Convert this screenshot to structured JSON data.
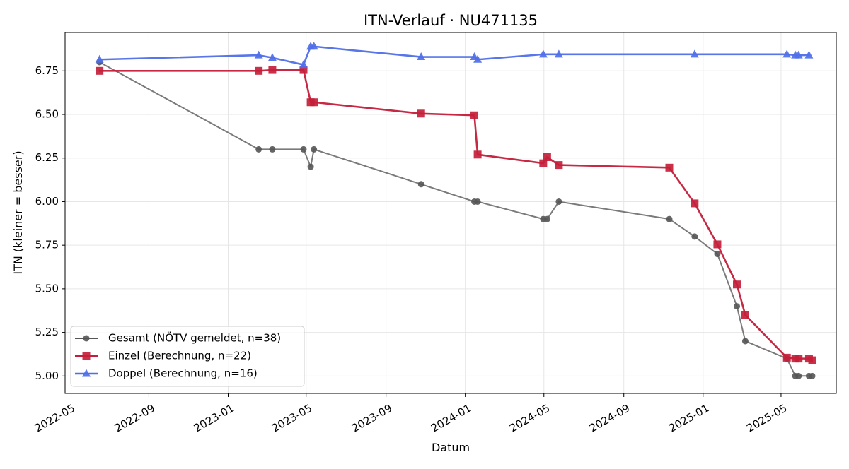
{
  "chart_data": {
    "type": "line",
    "title": "ITN-Verlauf · NU471135",
    "xlabel": "Datum",
    "ylabel": "ITN  (kleiner = besser)",
    "xlim": [
      "2022-04-25",
      "2025-07-25"
    ],
    "ylim": [
      4.9,
      6.97
    ],
    "x_tick_labels": [
      "2022-05",
      "2022-09",
      "2023-01",
      "2023-05",
      "2023-09",
      "2024-01",
      "2024-05",
      "2024-09",
      "2025-01",
      "2025-05"
    ],
    "x_ticks": [
      "2022-05-01",
      "2022-09-01",
      "2023-01-01",
      "2023-05-01",
      "2023-09-01",
      "2024-01-01",
      "2024-05-01",
      "2024-09-01",
      "2025-01-01",
      "2025-05-01"
    ],
    "y_ticks": [
      5.0,
      5.25,
      5.5,
      5.75,
      6.0,
      6.25,
      6.5,
      6.75
    ],
    "y_tick_labels": [
      "5.00",
      "5.25",
      "5.50",
      "5.75",
      "6.00",
      "6.25",
      "6.50",
      "6.75"
    ],
    "grid": true,
    "legend_position": "lower-left",
    "series": [
      {
        "name": "Gesamt (NÖTV gemeldet, n=38)",
        "color": "#555555",
        "marker": "circle",
        "points": [
          [
            "2022-06-17",
            6.8
          ],
          [
            "2023-02-17",
            6.3
          ],
          [
            "2023-03-10",
            6.3
          ],
          [
            "2023-04-27",
            6.3
          ],
          [
            "2023-05-08",
            6.2
          ],
          [
            "2023-05-13",
            6.3
          ],
          [
            "2023-10-25",
            6.1
          ],
          [
            "2024-01-15",
            6.0
          ],
          [
            "2024-01-20",
            6.0
          ],
          [
            "2024-04-30",
            5.9
          ],
          [
            "2024-05-06",
            5.9
          ],
          [
            "2024-05-24",
            6.0
          ],
          [
            "2024-11-10",
            5.9
          ],
          [
            "2024-12-19",
            5.8
          ],
          [
            "2025-01-23",
            5.7
          ],
          [
            "2025-02-22",
            5.4
          ],
          [
            "2025-03-07",
            5.2
          ],
          [
            "2025-05-10",
            5.1
          ],
          [
            "2025-05-23",
            5.0
          ],
          [
            "2025-05-28",
            5.0
          ],
          [
            "2025-06-13",
            5.0
          ],
          [
            "2025-06-18",
            5.0
          ]
        ]
      },
      {
        "name": "Einzel (Berechnung, n=22)",
        "color": "#c41e3a",
        "marker": "square",
        "points": [
          [
            "2022-06-17",
            6.75
          ],
          [
            "2023-02-17",
            6.75
          ],
          [
            "2023-03-10",
            6.755
          ],
          [
            "2023-04-27",
            6.755
          ],
          [
            "2023-05-08",
            6.57
          ],
          [
            "2023-05-13",
            6.57
          ],
          [
            "2023-10-25",
            6.505
          ],
          [
            "2024-01-15",
            6.495
          ],
          [
            "2024-01-20",
            6.27
          ],
          [
            "2024-04-30",
            6.22
          ],
          [
            "2024-05-06",
            6.255
          ],
          [
            "2024-05-24",
            6.21
          ],
          [
            "2024-11-10",
            6.195
          ],
          [
            "2024-12-19",
            5.99
          ],
          [
            "2025-01-23",
            5.755
          ],
          [
            "2025-02-22",
            5.525
          ],
          [
            "2025-03-07",
            5.35
          ],
          [
            "2025-05-10",
            5.105
          ],
          [
            "2025-05-23",
            5.1
          ],
          [
            "2025-05-28",
            5.1
          ],
          [
            "2025-06-13",
            5.1
          ],
          [
            "2025-06-18",
            5.09
          ]
        ]
      },
      {
        "name": "Doppel (Berechnung, n=16)",
        "color": "#4f6fe8",
        "marker": "triangle",
        "points": [
          [
            "2022-06-17",
            6.815
          ],
          [
            "2023-02-17",
            6.84
          ],
          [
            "2023-03-10",
            6.825
          ],
          [
            "2023-04-27",
            6.785
          ],
          [
            "2023-05-08",
            6.89
          ],
          [
            "2023-05-13",
            6.89
          ],
          [
            "2023-10-25",
            6.83
          ],
          [
            "2024-01-15",
            6.83
          ],
          [
            "2024-01-20",
            6.815
          ],
          [
            "2024-04-30",
            6.845
          ],
          [
            "2024-05-24",
            6.845
          ],
          [
            "2024-12-19",
            6.845
          ],
          [
            "2025-05-10",
            6.845
          ],
          [
            "2025-05-23",
            6.84
          ],
          [
            "2025-05-28",
            6.84
          ],
          [
            "2025-06-13",
            6.84
          ]
        ]
      }
    ]
  }
}
